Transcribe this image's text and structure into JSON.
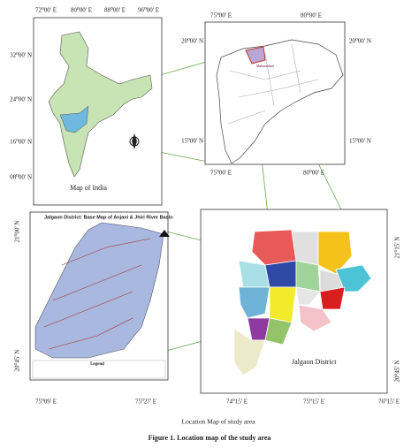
{
  "india_map": {
    "lon_labels": [
      "72⁰00' E",
      "80⁰00' E",
      "88⁰00' E",
      "96⁰00' E"
    ],
    "lat_labels": [
      "32⁰00' N",
      "24⁰00' N",
      "16⁰00' N",
      "08⁰00' N"
    ],
    "label": "Map of India"
  },
  "maharashtra_map": {
    "label": "Maharashtra",
    "top_labels": [
      "75⁰00' E",
      "80⁰00' E"
    ],
    "left_labels": [
      "20⁰00' N",
      "15⁰00' N"
    ],
    "right_labels": [
      "20⁰00' N",
      "15⁰00' N"
    ],
    "bottom_labels": [
      "75⁰00' E",
      "80⁰00' E"
    ]
  },
  "basin_map": {
    "title": "Jalgaon District: Base Map of Anjani & Jhiri River Basin",
    "legend": "Legend",
    "left_labels": [
      "21⁰00' N",
      "20⁰45' N"
    ],
    "bottom_labels": [
      "75⁰09' E",
      "75⁰27' E"
    ]
  },
  "jalgaon_map": {
    "label": "Jalgaon District",
    "right_labels": [
      "21⁰15' N",
      "20⁰45' N"
    ],
    "bottom_labels": [
      "74⁰15' E",
      "75⁰15' E",
      "76⁰15' E"
    ]
  },
  "caption": {
    "subtitle": "Location Map of study area",
    "figure": "Figure 1. Location map of the study area"
  }
}
